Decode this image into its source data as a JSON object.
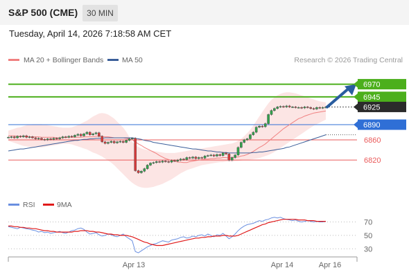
{
  "header": {
    "instrument": "S&P 500 (CME)",
    "timeframe": "30 MIN"
  },
  "timestamp": "Tuesday, April 14, 2026 7:18:58 AM CET",
  "legend": {
    "ma20_label": "MA 20 + Bollinger Bands",
    "ma50_label": "MA 50",
    "credit": "Research © 2026 Trading Central",
    "rsi_label": "RSI",
    "ma9_label": "9MA"
  },
  "colors": {
    "ma20": "#f08080",
    "ma50": "#3a5e99",
    "resistance": "#4caf1c",
    "pivot": "#2f6fd6",
    "support": "#ea5a5a",
    "current": "#2b2b2b",
    "band_fill": "#fbe0df",
    "arrow": "#2a5d9f",
    "rsi": "#6a8fe0",
    "rsi_ma": "#e01a1a",
    "candle_up": "#31a24c",
    "candle_down": "#d83a3a"
  },
  "chart_data": [
    {
      "type": "candlestick",
      "ylim": [
        6760,
        7005
      ],
      "x_labels": [
        "Apr 13",
        "Apr 14",
        "Apr 16"
      ],
      "levels": [
        {
          "value": 6970,
          "label": "6970",
          "kind": "resistance"
        },
        {
          "value": 6945,
          "label": "6945",
          "kind": "resistance"
        },
        {
          "value": 6925,
          "label": "6925",
          "kind": "current"
        },
        {
          "value": 6890,
          "label": "6890",
          "kind": "pivot"
        },
        {
          "value": 6860,
          "label": "6860",
          "kind": "support"
        },
        {
          "value": 6820,
          "label": "6820",
          "kind": "support"
        }
      ],
      "close": [
        6865,
        6866,
        6864,
        6867,
        6866,
        6868,
        6865,
        6866,
        6864,
        6862,
        6863,
        6861,
        6860,
        6862,
        6861,
        6863,
        6862,
        6864,
        6866,
        6865,
        6867,
        6866,
        6869,
        6871,
        6868,
        6872,
        6875,
        6870,
        6872,
        6874,
        6867,
        6856,
        6853,
        6855,
        6857,
        6854,
        6856,
        6857,
        6855,
        6859,
        6862,
        6863,
        6799,
        6795,
        6798,
        6803,
        6810,
        6814,
        6815,
        6817,
        6816,
        6818,
        6817,
        6816,
        6819,
        6818,
        6820,
        6822,
        6821,
        6825,
        6824,
        6826,
        6823,
        6825,
        6824,
        6828,
        6829,
        6830,
        6828,
        6831,
        6829,
        6834,
        6832,
        6820,
        6825,
        6830,
        6845,
        6855,
        6860,
        6862,
        6870,
        6875,
        6885,
        6887,
        6886,
        6892,
        6910,
        6918,
        6922,
        6925,
        6926,
        6925,
        6927,
        6925,
        6925,
        6924,
        6924,
        6923,
        6925,
        6924,
        6922,
        6921,
        6924,
        6923,
        6924,
        6925
      ],
      "ma20": [
        6868,
        6868,
        6868,
        6867,
        6867,
        6867,
        6867,
        6866,
        6866,
        6866,
        6866,
        6865,
        6865,
        6865,
        6865,
        6865,
        6864,
        6864,
        6864,
        6865,
        6865,
        6865,
        6865,
        6865,
        6865,
        6866,
        6866,
        6866,
        6866,
        6867,
        6867,
        6867,
        6866,
        6866,
        6865,
        6864,
        6864,
        6864,
        6864,
        6863,
        6862,
        6860,
        6856,
        6852,
        6849,
        6845,
        6842,
        6839,
        6836,
        6833,
        6829,
        6826,
        6823,
        6821,
        6819,
        6818,
        6816,
        6816,
        6815,
        6815,
        6817,
        6818,
        6819,
        6820,
        6821,
        6822,
        6822,
        6823,
        6823,
        6824,
        6824,
        6825,
        6825,
        6824,
        6825,
        6826,
        6826,
        6828,
        6829,
        6831,
        6834,
        6837,
        6841,
        6845,
        6848,
        6852,
        6857,
        6862,
        6867,
        6872,
        6877,
        6882,
        6886,
        6890,
        6894,
        6898,
        6902,
        6904,
        6907,
        6909,
        6911,
        6913,
        6914,
        6915,
        6916,
        6917
      ],
      "ma50": [
        6838,
        6839,
        6840,
        6841,
        6842,
        6842,
        6843,
        6844,
        6845,
        6846,
        6847,
        6848,
        6849,
        6850,
        6851,
        6852,
        6853,
        6854,
        6855,
        6856,
        6857,
        6858,
        6859,
        6859,
        6860,
        6861,
        6861,
        6862,
        6862,
        6863,
        6863,
        6863,
        6864,
        6864,
        6864,
        6864,
        6864,
        6864,
        6864,
        6864,
        6864,
        6864,
        6863,
        6862,
        6861,
        6859,
        6858,
        6857,
        6855,
        6854,
        6853,
        6852,
        6851,
        6850,
        6849,
        6848,
        6847,
        6846,
        6845,
        6844,
        6843,
        6842,
        6842,
        6841,
        6840,
        6839,
        6838,
        6838,
        6837,
        6836,
        6836,
        6835,
        6835,
        6834,
        6834,
        6834,
        6834,
        6834,
        6834,
        6834,
        6834,
        6835,
        6835,
        6836,
        6836,
        6837,
        6838,
        6839,
        6840,
        6841,
        6842,
        6843,
        6845,
        6846,
        6848,
        6850,
        6852,
        6854,
        6856,
        6858,
        6860,
        6862,
        6864,
        6866,
        6868,
        6870
      ],
      "band_upper": [
        6878,
        6880,
        6882,
        6884,
        6885,
        6887,
        6889,
        6890,
        6891,
        6891,
        6891,
        6891,
        6890,
        6889,
        6888,
        6887,
        6886,
        6885,
        6884,
        6884,
        6884,
        6885,
        6887,
        6889,
        6892,
        6895,
        6898,
        6902,
        6906,
        6909,
        6912,
        6913,
        6912,
        6910,
        6906,
        6902,
        6896,
        6890,
        6884,
        6876,
        6866,
        6856,
        6850,
        6846,
        6843,
        6841,
        6840,
        6839,
        6838,
        6837,
        6836,
        6835,
        6834,
        6834,
        6834,
        6834,
        6835,
        6836,
        6837,
        6838,
        6839,
        6840,
        6841,
        6842,
        6843,
        6844,
        6845,
        6846,
        6847,
        6848,
        6849,
        6850,
        6851,
        6852,
        6853,
        6855,
        6858,
        6862,
        6867,
        6873,
        6880,
        6888,
        6897,
        6906,
        6915,
        6924,
        6932,
        6939,
        6944,
        6948,
        6951,
        6953,
        6954,
        6954,
        6953,
        6952,
        6950,
        6948,
        6946,
        6944,
        6942,
        6940,
        6938,
        6936,
        6935,
        6934
      ],
      "band_lower": [
        6858,
        6856,
        6854,
        6852,
        6850,
        6848,
        6847,
        6846,
        6845,
        6845,
        6845,
        6845,
        6846,
        6847,
        6848,
        6849,
        6850,
        6851,
        6852,
        6852,
        6852,
        6851,
        6849,
        6847,
        6845,
        6843,
        6841,
        6838,
        6835,
        6833,
        6830,
        6827,
        6823,
        6819,
        6815,
        6810,
        6804,
        6798,
        6792,
        6786,
        6780,
        6775,
        6771,
        6768,
        6766,
        6765,
        6765,
        6766,
        6767,
        6769,
        6771,
        6773,
        6776,
        6779,
        6782,
        6786,
        6790,
        6794,
        6797,
        6800,
        6802,
        6804,
        6806,
        6808,
        6810,
        6811,
        6812,
        6813,
        6814,
        6815,
        6816,
        6816,
        6817,
        6817,
        6817,
        6818,
        6818,
        6819,
        6820,
        6820,
        6821,
        6822,
        6823,
        6824,
        6826,
        6828,
        6830,
        6833,
        6836,
        6840,
        6844,
        6848,
        6852,
        6856,
        6860,
        6864,
        6868,
        6872,
        6876,
        6880,
        6884,
        6888,
        6891,
        6894,
        6897,
        6900
      ]
    },
    {
      "type": "line",
      "title": "RSI",
      "ylim": [
        20,
        85
      ],
      "y_ticks": [
        70,
        50,
        30
      ],
      "rsi": [
        63,
        62,
        61,
        60,
        62,
        61,
        60,
        59,
        58,
        57,
        55,
        56,
        54,
        55,
        53,
        54,
        55,
        56,
        54,
        53,
        55,
        57,
        58,
        60,
        61,
        59,
        55,
        52,
        53,
        54,
        51,
        49,
        50,
        52,
        51,
        49,
        48,
        50,
        52,
        48,
        45,
        42,
        26,
        24,
        27,
        30,
        33,
        35,
        37,
        38,
        40,
        42,
        41,
        40,
        43,
        44,
        45,
        47,
        48,
        46,
        47,
        49,
        48,
        50,
        51,
        49,
        52,
        50,
        48,
        51,
        50,
        53,
        49,
        45,
        48,
        52,
        57,
        61,
        64,
        66,
        67,
        68,
        70,
        72,
        71,
        73,
        74,
        76,
        77,
        76,
        77,
        75,
        74,
        73,
        72,
        73,
        71,
        70,
        71,
        72,
        71,
        70,
        71,
        70,
        70,
        71
      ],
      "rsi_ma": [
        64,
        64,
        63,
        63,
        62,
        62,
        61,
        61,
        60,
        60,
        59,
        58,
        57,
        57,
        56,
        56,
        55,
        55,
        55,
        55,
        55,
        55,
        56,
        56,
        57,
        57,
        57,
        56,
        56,
        55,
        55,
        54,
        53,
        52,
        52,
        51,
        51,
        50,
        50,
        50,
        49,
        48,
        46,
        44,
        42,
        40,
        39,
        37,
        36,
        35,
        35,
        35,
        36,
        37,
        38,
        39,
        40,
        41,
        42,
        43,
        44,
        45,
        46,
        46,
        47,
        47,
        48,
        48,
        49,
        49,
        49,
        50,
        50,
        49,
        49,
        49,
        50,
        52,
        54,
        56,
        58,
        60,
        62,
        64,
        66,
        67,
        69,
        70,
        71,
        72,
        73,
        74,
        74,
        74,
        74,
        74,
        73,
        73,
        73,
        72,
        72,
        72,
        71,
        71,
        71,
        71
      ]
    }
  ]
}
